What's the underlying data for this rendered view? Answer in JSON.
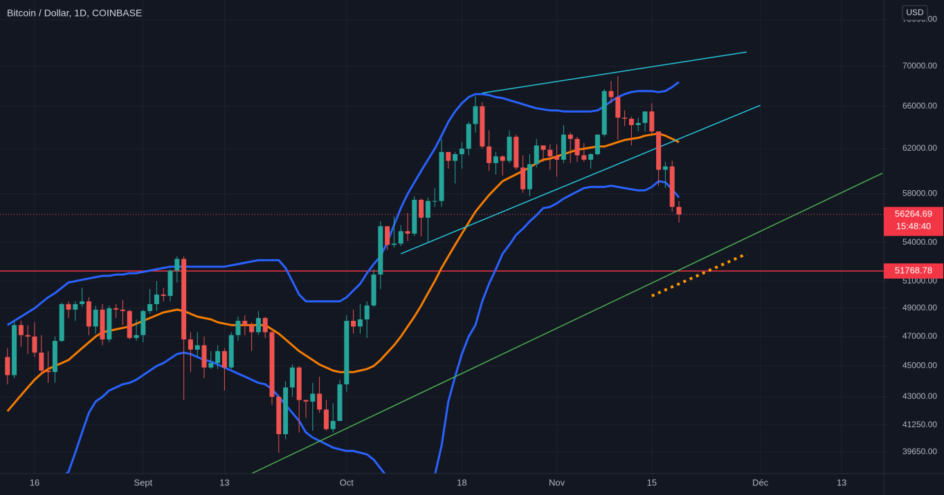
{
  "chart_data": {
    "type": "candlestick",
    "title": "Bitcoin / Dollar, 1D, COINBASE",
    "currency": "USD",
    "countdown": "15:48:40",
    "up_color": "#26a69a",
    "down_color": "#ef5350",
    "log_scale": true,
    "grid": true,
    "categories": [
      null,
      null,
      null,
      null,
      "16",
      null,
      null,
      null,
      null,
      null,
      null,
      null,
      null,
      null,
      null,
      null,
      null,
      null,
      null,
      null,
      "Sept",
      null,
      null,
      null,
      null,
      null,
      null,
      null,
      null,
      null,
      null,
      null,
      "13",
      null,
      null,
      null,
      null,
      null,
      null,
      null,
      null,
      null,
      null,
      null,
      null,
      null,
      null,
      null,
      null,
      null,
      "Oct",
      null,
      null,
      null,
      null,
      null,
      null,
      null,
      null,
      null,
      null,
      null,
      null,
      null,
      null,
      null,
      null,
      "18",
      null,
      null,
      null,
      null,
      null,
      null,
      null,
      null,
      null,
      null,
      null,
      null,
      null,
      "Nov",
      null,
      null,
      null,
      null,
      null,
      null,
      null,
      null,
      null,
      null,
      null,
      null,
      null,
      "15",
      null,
      null,
      null,
      null,
      null,
      null,
      null,
      null,
      null,
      null,
      null,
      null,
      null,
      null,
      null,
      "Déc",
      null,
      null,
      null,
      null,
      null,
      null,
      null,
      null,
      null,
      null,
      null,
      "13",
      null,
      null,
      null,
      null,
      null,
      null
    ],
    "open": [
      45600,
      44400,
      47800,
      47100,
      47000,
      45900,
      44700,
      44600,
      46700,
      49300,
      48900,
      49300,
      49500,
      47700,
      48900,
      46800,
      49000,
      48900,
      48800,
      46900,
      47100,
      48800,
      49300,
      50000,
      49900,
      51800,
      52700,
      46800,
      46100,
      46400,
      44900,
      45200,
      46000,
      44900,
      47100,
      48100,
      47800,
      47300,
      48300,
      47300,
      43000,
      40700,
      43600,
      44900,
      42800,
      42700,
      43200,
      42200,
      41000,
      41500,
      43800,
      48100,
      47700,
      48200,
      49200,
      51500,
      55300,
      53800,
      53900,
      54900,
      54700,
      57500,
      56000,
      57400,
      57400,
      61700,
      60900,
      61500,
      62000,
      64300,
      66000,
      62200,
      60700,
      61300,
      60900,
      63100,
      60300,
      58400,
      60600,
      62300,
      61900,
      61300,
      61000,
      63300,
      62900,
      61400,
      61000,
      61500,
      63300,
      67500,
      66900,
      64900,
      64800,
      64200,
      64400,
      65500,
      63600,
      60100,
      60400,
      56900,
      null,
      null,
      null,
      null,
      null,
      null,
      null,
      null,
      null,
      null,
      null,
      null,
      null,
      null,
      null,
      null,
      null,
      null,
      null,
      null,
      null,
      null,
      null,
      null,
      null,
      null,
      null,
      null,
      null,
      null
    ],
    "high": [
      46200,
      48100,
      48100,
      47800,
      48000,
      47100,
      46000,
      47000,
      49400,
      49500,
      49500,
      50500,
      49800,
      49200,
      49300,
      49200,
      49300,
      49600,
      48900,
      48200,
      48900,
      50400,
      51000,
      50500,
      51900,
      52900,
      52900,
      47300,
      47300,
      47000,
      46000,
      46400,
      46200,
      47300,
      48400,
      48500,
      48000,
      48800,
      48400,
      47400,
      43100,
      44000,
      45100,
      45000,
      42800,
      43900,
      44300,
      42800,
      42600,
      44100,
      48500,
      48900,
      49300,
      49500,
      51900,
      55700,
      55300,
      56100,
      55400,
      56400,
      57800,
      57600,
      57700,
      58500,
      62900,
      61700,
      61700,
      62600,
      64500,
      67000,
      66400,
      63700,
      61700,
      61400,
      63700,
      63300,
      61400,
      61500,
      62900,
      62300,
      62400,
      62400,
      64200,
      63500,
      63100,
      62500,
      61600,
      63300,
      67700,
      68500,
      69000,
      65600,
      65000,
      64900,
      65500,
      66300,
      63600,
      60800,
      60900,
      57400,
      null,
      null,
      null,
      null,
      null,
      null,
      null,
      null,
      null,
      null,
      null,
      null,
      null,
      null,
      null,
      null,
      null,
      null,
      null,
      null,
      null,
      null,
      null,
      null,
      null,
      null,
      null,
      null,
      null,
      null
    ],
    "low": [
      43800,
      44200,
      46300,
      45800,
      45600,
      44400,
      43900,
      43900,
      46600,
      48300,
      48100,
      49100,
      47100,
      47200,
      46400,
      46600,
      48300,
      47800,
      46800,
      46700,
      46600,
      48600,
      48800,
      49500,
      49500,
      50900,
      42800,
      44600,
      45600,
      44200,
      44800,
      44800,
      43400,
      44800,
      46700,
      47100,
      46000,
      47100,
      46900,
      42500,
      39600,
      40400,
      43000,
      40800,
      41700,
      40900,
      42000,
      40900,
      40800,
      41500,
      43300,
      47200,
      47200,
      46900,
      49100,
      50400,
      53400,
      53600,
      53700,
      54100,
      54500,
      54500,
      54000,
      56900,
      56900,
      60200,
      58900,
      60200,
      61400,
      63500,
      62000,
      60000,
      59700,
      59600,
      60700,
      60100,
      58100,
      57800,
      60300,
      60800,
      60100,
      59500,
      60700,
      60700,
      60800,
      60800,
      60200,
      61400,
      63100,
      66300,
      62800,
      64100,
      62300,
      63600,
      63600,
      63400,
      58700,
      58500,
      56500,
      55600,
      null,
      null,
      null,
      null,
      null,
      null,
      null,
      null,
      null,
      null,
      null,
      null,
      null,
      null,
      null,
      null,
      null,
      null,
      null,
      null,
      null,
      null,
      null,
      null,
      null,
      null,
      null,
      null,
      null,
      null
    ],
    "close": [
      44400,
      47800,
      47100,
      47000,
      45900,
      44700,
      44600,
      46700,
      49300,
      48900,
      49300,
      49500,
      47700,
      48900,
      46800,
      49000,
      48900,
      48800,
      46900,
      47100,
      48800,
      49300,
      50000,
      49900,
      51800,
      52700,
      46800,
      46100,
      46400,
      44900,
      45200,
      46000,
      44900,
      47100,
      48100,
      47800,
      47300,
      48300,
      47300,
      43000,
      40700,
      43600,
      44900,
      42800,
      42700,
      43200,
      42200,
      41000,
      41500,
      43800,
      48100,
      47700,
      48200,
      49200,
      51500,
      55300,
      53800,
      53900,
      54900,
      54700,
      57500,
      56000,
      57400,
      57400,
      61700,
      60900,
      61500,
      62000,
      64300,
      66000,
      62200,
      60700,
      61300,
      60900,
      63100,
      60300,
      58400,
      60600,
      62300,
      61900,
      61300,
      61000,
      63300,
      62900,
      61400,
      61000,
      61500,
      63300,
      67500,
      66900,
      64900,
      64800,
      64200,
      64400,
      65500,
      63600,
      60100,
      60400,
      56900,
      56264.69,
      null,
      null,
      null,
      null,
      null,
      null,
      null,
      null,
      null,
      null,
      null,
      null,
      null,
      null,
      null,
      null,
      null,
      null,
      null,
      null,
      null,
      null,
      null,
      null,
      null,
      null,
      null,
      null,
      null,
      null
    ],
    "bands": [
      {
        "color": "#2962ff",
        "values": [
          47800,
          48100,
          48400,
          48700,
          49000,
          49400,
          49800,
          50100,
          50500,
          50900,
          51000,
          51100,
          51200,
          51300,
          51400,
          51400,
          51500,
          51500,
          51600,
          51600,
          51700,
          51800,
          51900,
          52000,
          52100,
          52100,
          52100,
          52100,
          52100,
          52100,
          52100,
          52100,
          52100,
          52200,
          52300,
          52400,
          52500,
          52600,
          52600,
          52600,
          52600,
          52000,
          51000,
          50000,
          49500,
          49500,
          49500,
          49500,
          49500,
          49500,
          49800,
          50300,
          50800,
          51600,
          52300,
          52900,
          54000,
          55400,
          56800,
          58000,
          59000,
          60000,
          61000,
          62000,
          63200,
          64500,
          65500,
          66300,
          66900,
          67200,
          67200,
          67100,
          66900,
          66800,
          66600,
          66400,
          66200,
          66000,
          65800,
          65700,
          65600,
          65600,
          65500,
          65500,
          65500,
          65500,
          65500,
          65600,
          66000,
          66500,
          66900,
          67200,
          67400,
          67500,
          67500,
          67500,
          67400,
          67500,
          67900,
          68400,
          null,
          null,
          null,
          null,
          null,
          null,
          null,
          null,
          null,
          null,
          null,
          null,
          null,
          null,
          null,
          null,
          null,
          null,
          null,
          null,
          null,
          null,
          null,
          null,
          null,
          null,
          null,
          null,
          null,
          null
        ]
      },
      {
        "color": "#f57c00",
        "values": [
          42100,
          42600,
          43100,
          43600,
          44100,
          44500,
          44800,
          45000,
          45200,
          45400,
          45800,
          46200,
          46600,
          47000,
          47300,
          47400,
          47500,
          47600,
          47700,
          47900,
          48100,
          48300,
          48500,
          48700,
          48800,
          48900,
          48800,
          48600,
          48400,
          48300,
          48200,
          48000,
          47900,
          47800,
          47800,
          47800,
          47800,
          47800,
          47800,
          47500,
          47200,
          46800,
          46400,
          46000,
          45700,
          45400,
          45100,
          44900,
          44700,
          44600,
          44600,
          44600,
          44700,
          44800,
          45000,
          45400,
          45900,
          46400,
          47000,
          47700,
          48400,
          49200,
          50100,
          51000,
          52000,
          52900,
          53800,
          54700,
          55600,
          56500,
          57200,
          57900,
          58500,
          59100,
          59400,
          59700,
          60000,
          60300,
          60700,
          61000,
          61100,
          61300,
          61500,
          61700,
          61900,
          62000,
          62100,
          62200,
          62200,
          62400,
          62600,
          62800,
          62900,
          63000,
          63200,
          63300,
          63400,
          63200,
          62900,
          62600,
          null,
          null,
          null,
          null,
          null,
          null,
          null,
          null,
          null,
          null,
          null,
          null,
          null,
          null,
          null,
          null,
          null,
          null,
          null,
          null,
          null,
          null,
          null,
          null,
          null,
          null,
          null,
          null,
          null,
          null
        ]
      },
      {
        "color": "#2962ff",
        "values": [
          36400,
          36600,
          36800,
          37000,
          37200,
          37500,
          37800,
          38000,
          38200,
          38500,
          39600,
          40800,
          42000,
          42700,
          43000,
          43400,
          43600,
          43800,
          43900,
          44100,
          44400,
          44700,
          45000,
          45200,
          45500,
          45800,
          45900,
          45800,
          45600,
          45400,
          45300,
          45100,
          44900,
          44700,
          44500,
          44300,
          44100,
          43900,
          43800,
          43500,
          43000,
          42500,
          42000,
          41500,
          40800,
          40500,
          40300,
          40100,
          39900,
          39800,
          39700,
          39700,
          39600,
          39500,
          39200,
          38700,
          38200,
          37600,
          37000,
          36500,
          36300,
          36600,
          37500,
          38300,
          40000,
          42700,
          44300,
          45800,
          47000,
          47800,
          49500,
          50800,
          51900,
          53100,
          53800,
          54600,
          55100,
          55700,
          56200,
          56800,
          56900,
          57200,
          57600,
          57900,
          58200,
          58500,
          58600,
          58600,
          58600,
          58700,
          58600,
          58500,
          58400,
          58300,
          58300,
          58600,
          59100,
          59000,
          58400,
          57700,
          null,
          null,
          null,
          null,
          null,
          null,
          null,
          null,
          null,
          null,
          null,
          null,
          null,
          null,
          null,
          null,
          null,
          null,
          null,
          null,
          null,
          null,
          null,
          null,
          null,
          null,
          null,
          null,
          null,
          null
        ]
      }
    ],
    "trendlines": [
      {
        "color": "#4caf50",
        "dash": false,
        "x": [
          36,
          129
        ],
        "values": [
          38400,
          59800
        ]
      },
      {
        "color": "#26c6da",
        "dash": false,
        "x": [
          70,
          109
        ],
        "values": [
          67300,
          71500
        ]
      },
      {
        "color": "#26c6da",
        "dash": false,
        "x": [
          58,
          111
        ],
        "values": [
          53100,
          66100
        ]
      },
      {
        "color": "#ff9800",
        "dash": true,
        "x": [
          95,
          109
        ],
        "values": [
          49900,
          53100
        ]
      }
    ],
    "level": {
      "value": 51768.78,
      "color": "#f23645"
    },
    "ylim": [
      38400,
      77200
    ],
    "yticks": [
      {
        "value": 75000,
        "label": "75000.00"
      },
      {
        "value": 70000,
        "label": "70000.00"
      },
      {
        "value": 66000,
        "label": "66000.00"
      },
      {
        "value": 62000,
        "label": "62000.00"
      },
      {
        "value": 58000,
        "label": "58000.00"
      },
      {
        "value": 54000,
        "label": "54000.00"
      },
      {
        "value": 51000,
        "label": "51000.00"
      },
      {
        "value": 49000,
        "label": "49000.00"
      },
      {
        "value": 47000,
        "label": "47000.00"
      },
      {
        "value": 45000,
        "label": "45000.00"
      },
      {
        "value": 43000,
        "label": "43000.00"
      },
      {
        "value": 41250,
        "label": "41250.00"
      },
      {
        "value": 39650,
        "label": "39650.00"
      }
    ]
  }
}
